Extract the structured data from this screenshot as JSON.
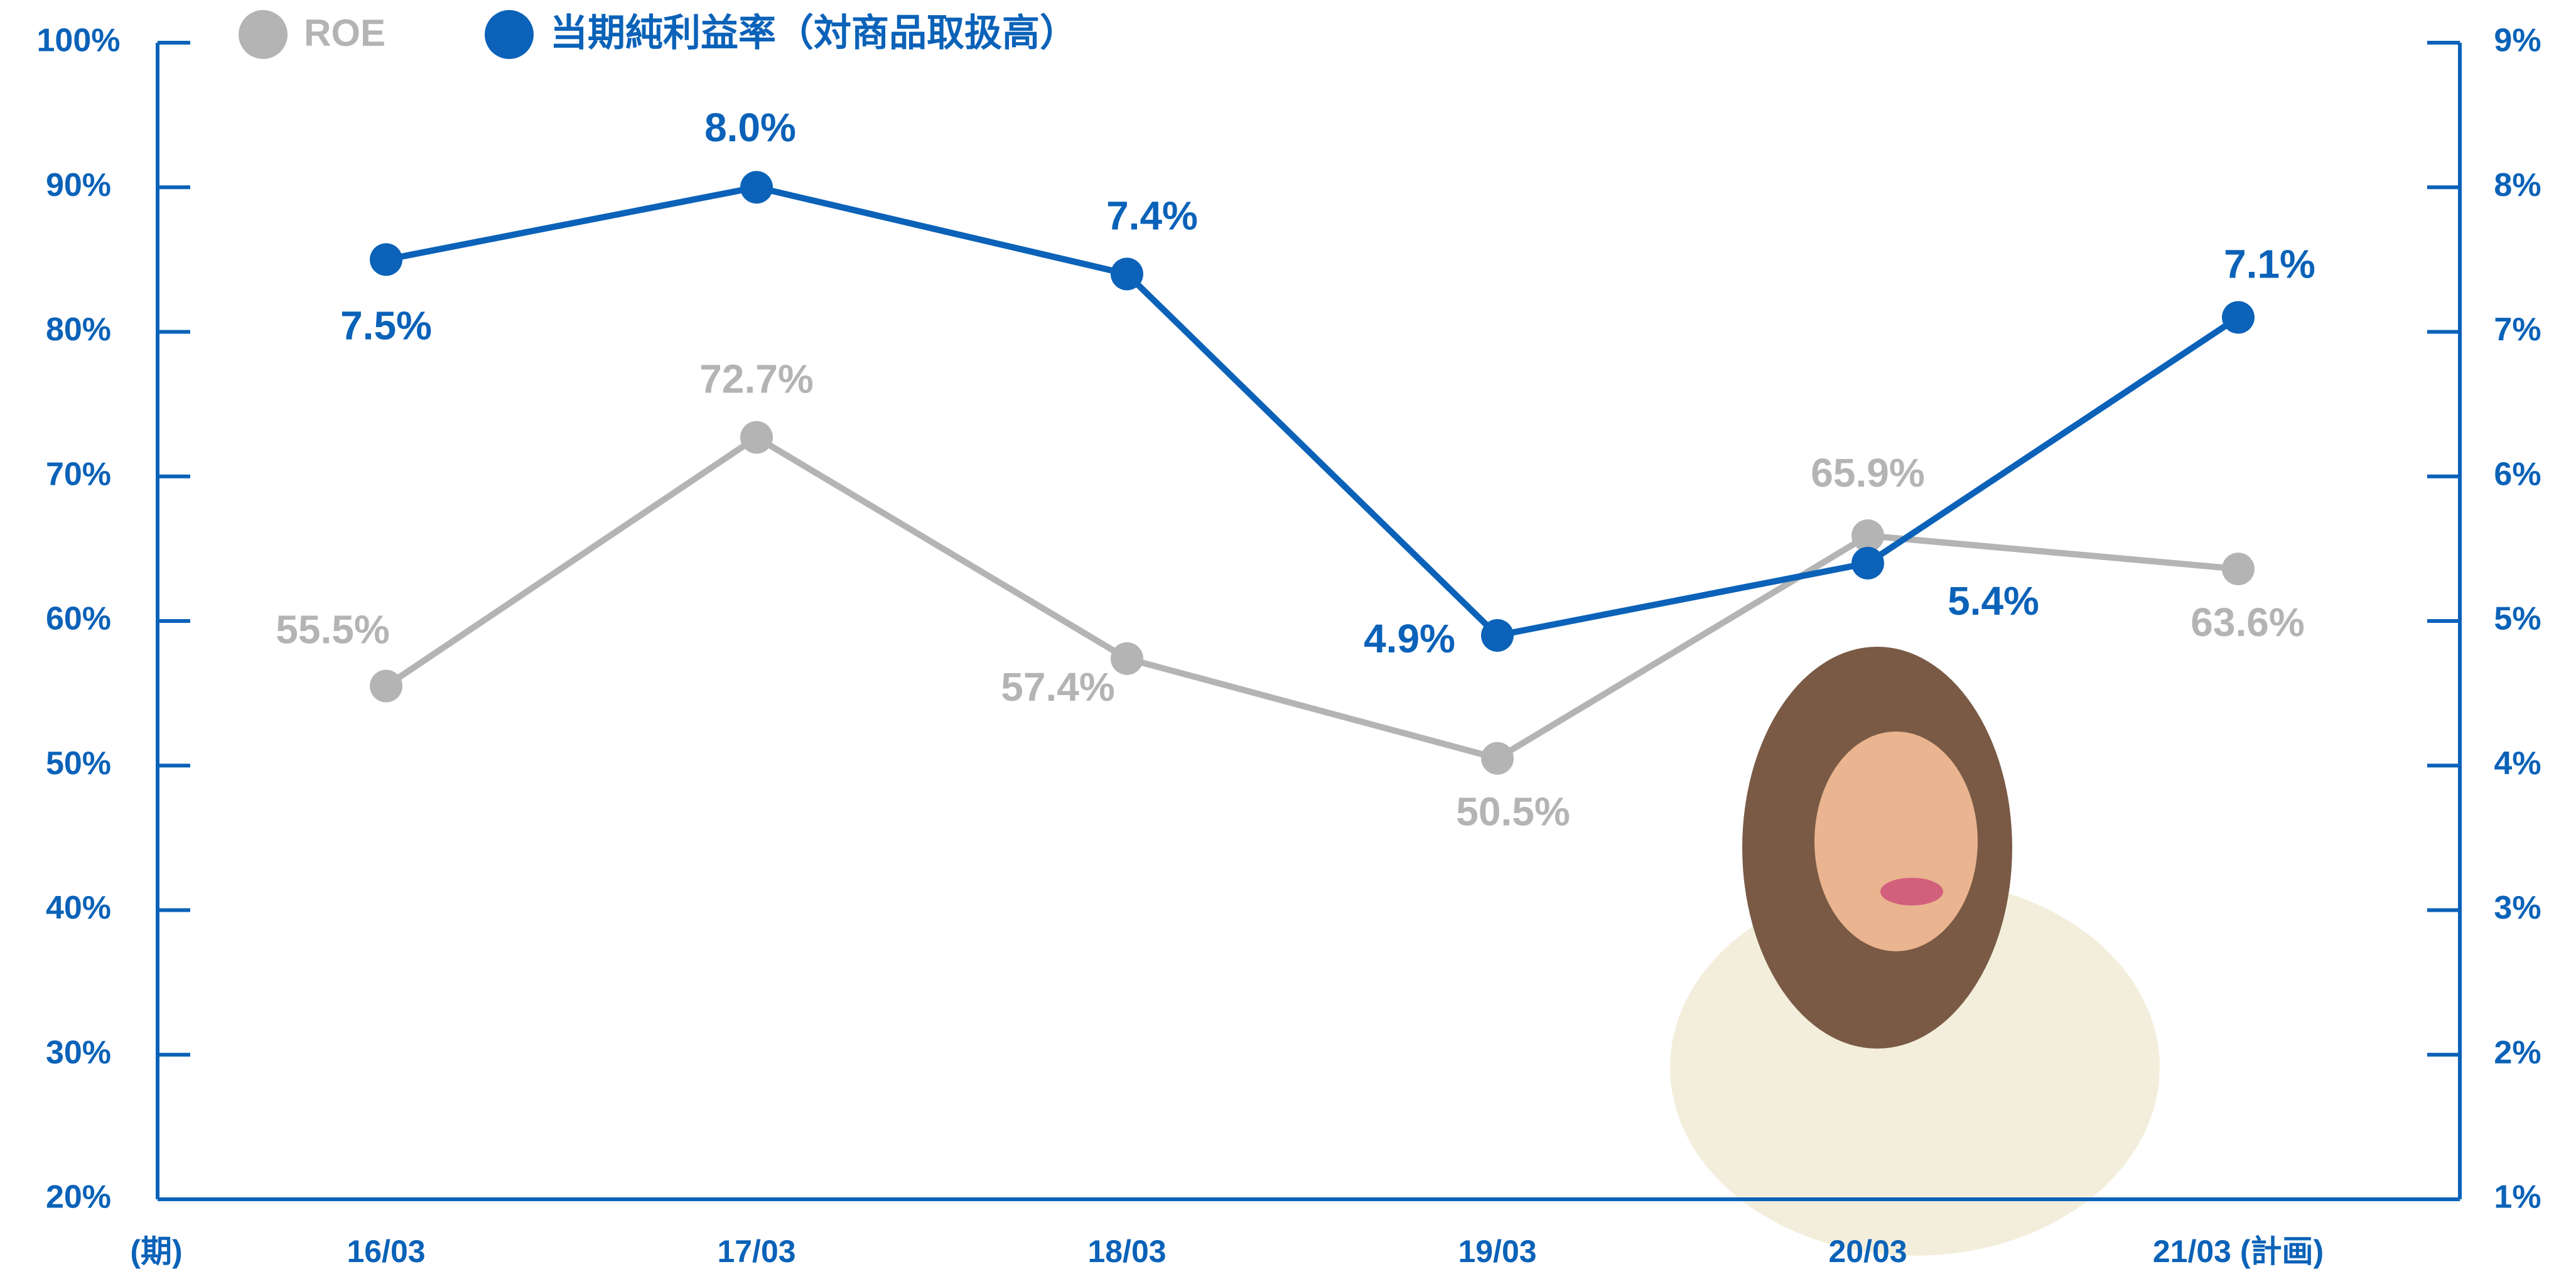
{
  "chart_data": {
    "type": "line",
    "x_label": "(期)",
    "categories": [
      "16/03",
      "17/03",
      "18/03",
      "19/03",
      "20/03",
      "21/03 (計画)"
    ],
    "ylim": [
      20,
      100
    ],
    "yticks": [
      {
        "value": 20,
        "label": "20%"
      },
      {
        "value": 30,
        "label": "30%"
      },
      {
        "value": 40,
        "label": "40%"
      },
      {
        "value": 50,
        "label": "50%"
      },
      {
        "value": 60,
        "label": "60%"
      },
      {
        "value": 70,
        "label": "70%"
      },
      {
        "value": 80,
        "label": "80%"
      },
      {
        "value": 90,
        "label": "90%"
      },
      {
        "value": 100,
        "label": "100%"
      }
    ],
    "y2lim": [
      1,
      9
    ],
    "y2ticks": [
      {
        "value": 1,
        "label": "1%"
      },
      {
        "value": 2,
        "label": "2%"
      },
      {
        "value": 3,
        "label": "3%"
      },
      {
        "value": 4,
        "label": "4%"
      },
      {
        "value": 5,
        "label": "5%"
      },
      {
        "value": 6,
        "label": "6%"
      },
      {
        "value": 7,
        "label": "7%"
      },
      {
        "value": 8,
        "label": "8%"
      },
      {
        "value": 9,
        "label": "9%"
      }
    ],
    "axis_color": "#0b62b8",
    "grid": false,
    "legend": "top-left",
    "series": [
      {
        "name": "ROE",
        "color": "#b4b4b4",
        "values": [
          55.5,
          72.7,
          57.4,
          50.5,
          65.9,
          63.6
        ],
        "value_labels": [
          "55.5%",
          "72.7%",
          "57.4%",
          "50.5%",
          "65.9%",
          "63.6%"
        ]
      },
      {
        "name": "当期純利益率（対商品取扱高）",
        "color": "#0b62b8",
        "axis": "y2",
        "values": [
          7.5,
          8.0,
          7.4,
          4.9,
          5.4,
          7.1
        ],
        "value_labels": [
          "7.5%",
          "8.0%",
          "7.4%",
          "4.9%",
          "5.4%",
          "7.1%"
        ]
      }
    ]
  }
}
